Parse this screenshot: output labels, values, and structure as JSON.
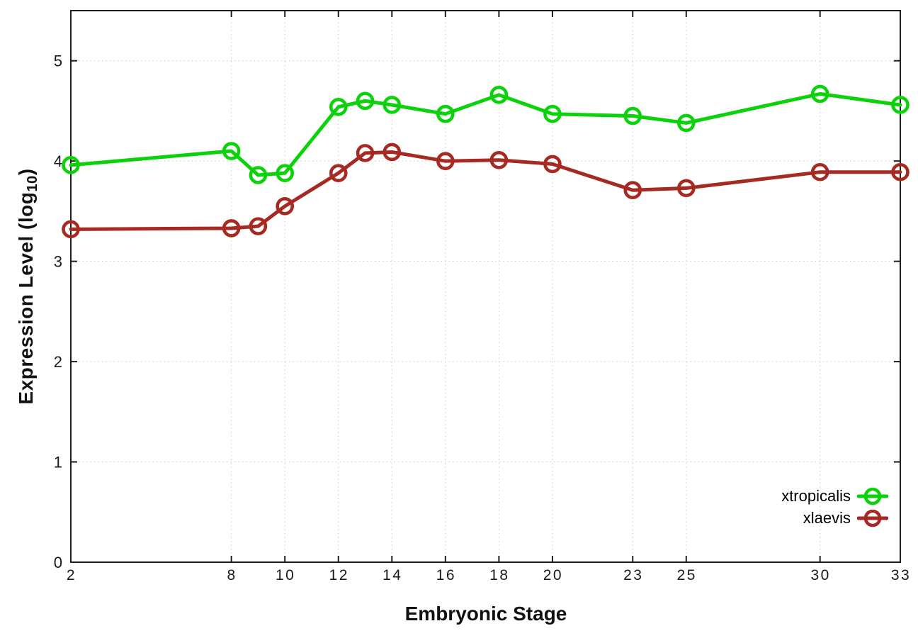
{
  "chart_data": {
    "type": "line",
    "title": "",
    "xlabel": "Embryonic Stage",
    "ylabel": "Expression Level (log10)",
    "ylabel_parts": {
      "base": "Expression Level (log",
      "subscript": "10",
      "suffix": ")"
    },
    "x": [
      2,
      8,
      9,
      10,
      12,
      13,
      14,
      16,
      18,
      20,
      23,
      25,
      30,
      33
    ],
    "x_tick_labels": [
      "2",
      "8",
      "10",
      "12",
      "14",
      "16",
      "18",
      "20",
      "23",
      "25",
      "30",
      "33"
    ],
    "x_tick_values": [
      2,
      8,
      10,
      12,
      14,
      16,
      18,
      20,
      23,
      25,
      30,
      33
    ],
    "y_tick_labels": [
      "0",
      "1",
      "2",
      "3",
      "4",
      "5"
    ],
    "y_tick_values": [
      0,
      1,
      2,
      3,
      4,
      5
    ],
    "xlim": [
      2,
      33
    ],
    "ylim": [
      0,
      5.5
    ],
    "grid": "dotted",
    "marker": "open-circle",
    "legend_position": "inside-bottom-right",
    "series": [
      {
        "name": "xtropicalis",
        "color": "#0cd20c",
        "values": [
          3.96,
          4.1,
          3.86,
          3.88,
          4.54,
          4.6,
          4.56,
          4.47,
          4.66,
          4.47,
          4.45,
          4.38,
          4.67,
          4.56
        ]
      },
      {
        "name": "xlaevis",
        "color": "#a62a22",
        "values": [
          3.32,
          3.33,
          3.35,
          3.55,
          3.88,
          4.08,
          4.09,
          4.0,
          4.01,
          3.97,
          3.71,
          3.73,
          3.89,
          3.89
        ]
      }
    ],
    "colors": {
      "axis": "#1f1f1f",
      "grid": "#c9c9c9",
      "text": "#1a1a1a",
      "background": "#ffffff"
    }
  }
}
